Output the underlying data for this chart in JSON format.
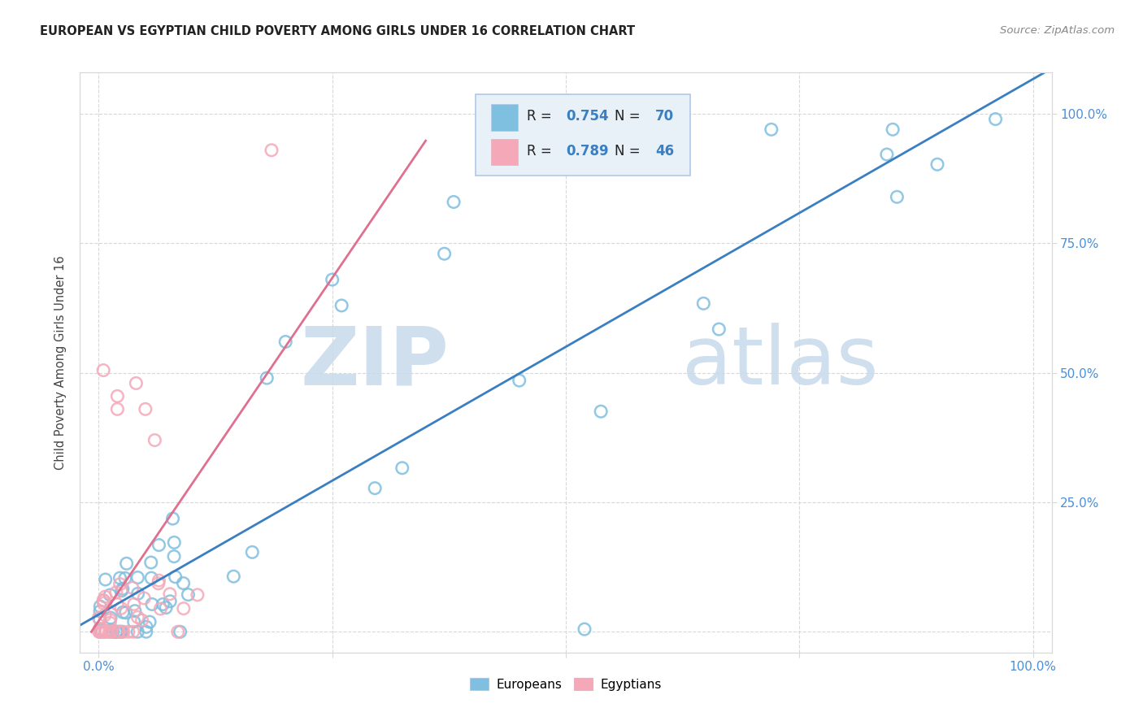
{
  "title": "EUROPEAN VS EGYPTIAN CHILD POVERTY AMONG GIRLS UNDER 16 CORRELATION CHART",
  "source": "Source: ZipAtlas.com",
  "ylabel": "Child Poverty Among Girls Under 16",
  "background_color": "#ffffff",
  "watermark_zip": "ZIP",
  "watermark_atlas": "atlas",
  "legend_blue_R": "0.754",
  "legend_blue_N": "70",
  "legend_pink_R": "0.789",
  "legend_pink_N": "46",
  "blue_scatter_color": "#7fbfdf",
  "pink_scatter_color": "#f5a8b8",
  "blue_line_color": "#3a7fc1",
  "pink_line_color": "#e07090",
  "watermark_color": "#c8daea",
  "title_color": "#222222",
  "source_color": "#888888",
  "tick_color": "#4a90d9",
  "ylabel_color": "#444444",
  "grid_color": "#d8d8d8",
  "legend_box_color": "#e8f0f8",
  "legend_border_color": "#b0c8e8"
}
